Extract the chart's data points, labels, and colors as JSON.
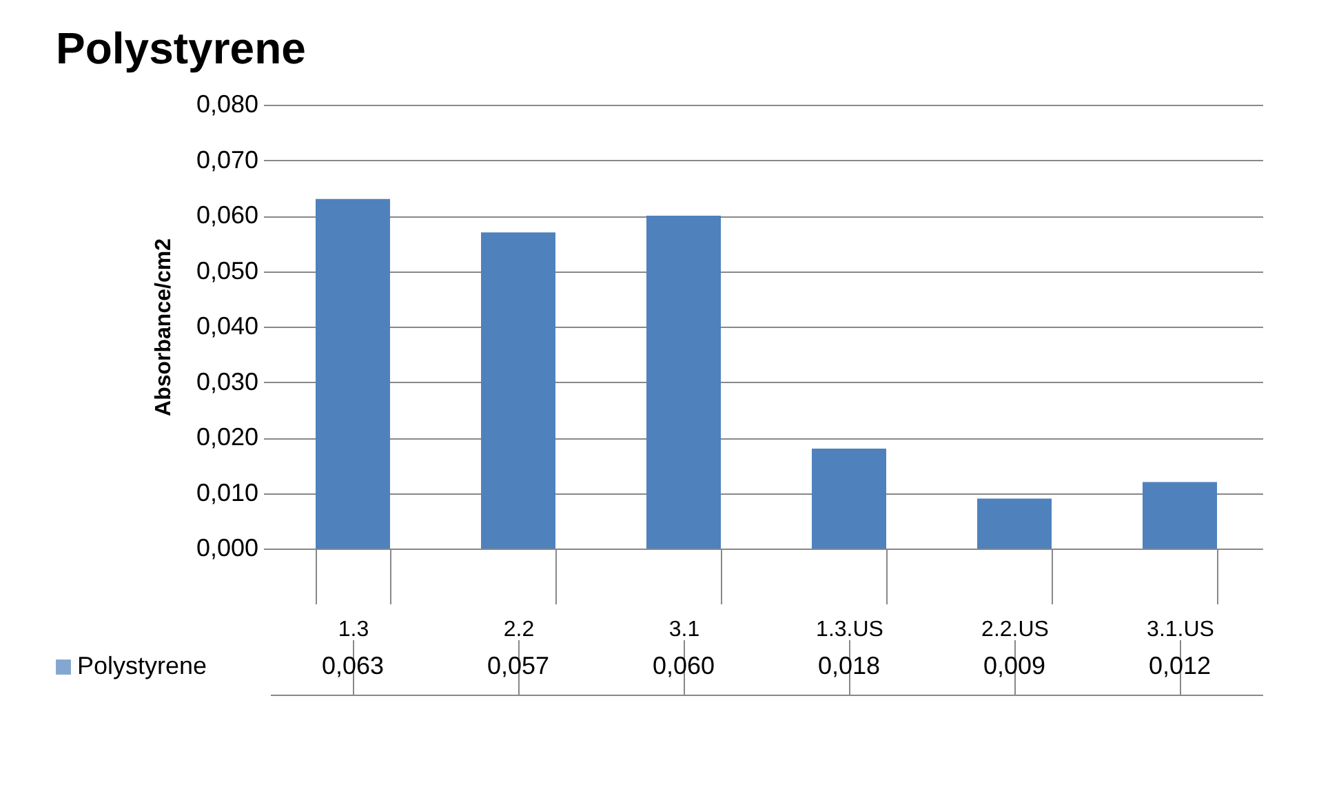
{
  "chart_data": {
    "type": "bar",
    "title": "Polystyrene",
    "ylabel": "Absorbance/cm2",
    "categories": [
      "1.3",
      "2.2",
      "3.1",
      "1.3.US",
      "2.2.US",
      "3.1.US"
    ],
    "series": [
      {
        "name": "Polystyrene",
        "color": "#4f81bd",
        "values": [
          0.063,
          0.057,
          0.06,
          0.018,
          0.009,
          0.012
        ],
        "value_labels": [
          "0,063",
          "0,057",
          "0,060",
          "0,018",
          "0,009",
          "0,012"
        ]
      }
    ],
    "ylim": [
      0,
      0.08
    ],
    "yticks": [
      {
        "value": 0,
        "label": "0,000"
      },
      {
        "value": 0.01,
        "label": "0,010"
      },
      {
        "value": 0.02,
        "label": "0,020"
      },
      {
        "value": 0.03,
        "label": "0,030"
      },
      {
        "value": 0.04,
        "label": "0,040"
      },
      {
        "value": 0.05,
        "label": "0,050"
      },
      {
        "value": 0.06,
        "label": "0,060"
      },
      {
        "value": 0.07,
        "label": "0,070"
      },
      {
        "value": 0.08,
        "label": "0,080"
      }
    ],
    "grid": "y",
    "legend": "bottom left"
  }
}
